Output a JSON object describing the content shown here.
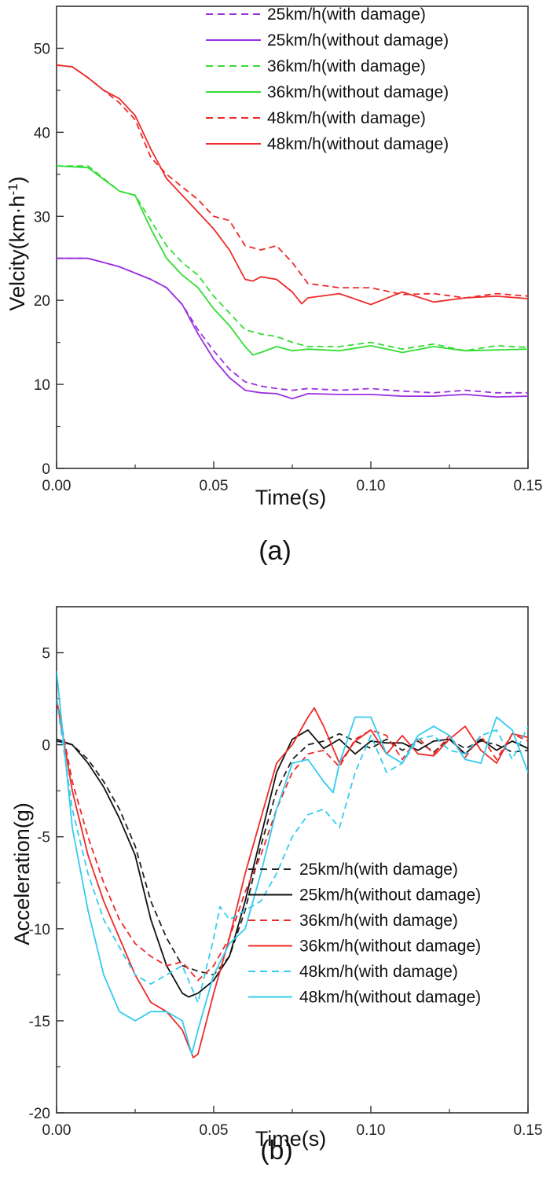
{
  "chart_data": [
    {
      "type": "line",
      "panel_label": "(a)",
      "xlabel": "Time(s)",
      "ylabel": "Velcity(km·h",
      "ylabel_sup": "-1",
      "ylabel_close": ")",
      "xlim": [
        0,
        0.15
      ],
      "ylim": [
        0,
        55
      ],
      "xticks": [
        "0.00",
        "0.05",
        "0.10",
        "0.15"
      ],
      "xtick_values": [
        0,
        0.05,
        0.1,
        0.15
      ],
      "yticks": [
        "0",
        "10",
        "20",
        "30",
        "40",
        "50"
      ],
      "ytick_values": [
        0,
        10,
        20,
        30,
        40,
        50
      ],
      "grid": false,
      "legend_position": "top-right",
      "series": [
        {
          "name": "25km/h(with damage)",
          "color": "#9b30e0",
          "dash": true,
          "x": [
            0,
            0.01,
            0.02,
            0.03,
            0.035,
            0.04,
            0.045,
            0.05,
            0.055,
            0.06,
            0.065,
            0.07,
            0.075,
            0.08,
            0.09,
            0.1,
            0.11,
            0.12,
            0.13,
            0.14,
            0.15
          ],
          "y": [
            25,
            25,
            24,
            22.5,
            21.5,
            19.5,
            16.5,
            14,
            11.8,
            10.3,
            9.8,
            9.5,
            9.3,
            9.5,
            9.3,
            9.5,
            9.2,
            9.0,
            9.3,
            9.0,
            9.0
          ]
        },
        {
          "name": "25km/h(without damage)",
          "color": "#9b30e0",
          "dash": false,
          "x": [
            0,
            0.01,
            0.02,
            0.03,
            0.035,
            0.04,
            0.045,
            0.05,
            0.055,
            0.06,
            0.065,
            0.07,
            0.075,
            0.08,
            0.09,
            0.1,
            0.11,
            0.12,
            0.13,
            0.14,
            0.15
          ],
          "y": [
            25,
            25,
            24,
            22.5,
            21.5,
            19.5,
            16,
            13,
            10.8,
            9.3,
            9.0,
            8.9,
            8.3,
            8.9,
            8.8,
            8.8,
            8.6,
            8.6,
            8.8,
            8.5,
            8.6
          ]
        },
        {
          "name": "36km/h(with damage)",
          "color": "#33dd33",
          "dash": true,
          "x": [
            0,
            0.01,
            0.02,
            0.025,
            0.03,
            0.035,
            0.04,
            0.045,
            0.05,
            0.055,
            0.06,
            0.065,
            0.07,
            0.075,
            0.08,
            0.09,
            0.1,
            0.11,
            0.12,
            0.13,
            0.14,
            0.15
          ],
          "y": [
            36,
            36,
            33,
            32.5,
            29.5,
            26.5,
            24.5,
            23,
            20.5,
            18.5,
            16.5,
            16,
            15.7,
            15,
            14.5,
            14.5,
            15,
            14.2,
            14.8,
            14.0,
            14.6,
            14.4
          ]
        },
        {
          "name": "36km/h(without damage)",
          "color": "#33dd33",
          "dash": false,
          "x": [
            0,
            0.01,
            0.02,
            0.025,
            0.03,
            0.035,
            0.04,
            0.045,
            0.05,
            0.055,
            0.06,
            0.0625,
            0.065,
            0.07,
            0.075,
            0.08,
            0.09,
            0.1,
            0.11,
            0.12,
            0.13,
            0.14,
            0.15
          ],
          "y": [
            36,
            35.8,
            33,
            32.5,
            28.5,
            25,
            23,
            21.5,
            19,
            17,
            14.5,
            13.5,
            13.8,
            14.5,
            14,
            14.2,
            14.0,
            14.6,
            13.8,
            14.5,
            14.0,
            14.1,
            14.2
          ]
        },
        {
          "name": "48km/h(with damage)",
          "color": "#ee2a2a",
          "dash": true,
          "x": [
            0,
            0.005,
            0.01,
            0.015,
            0.02,
            0.025,
            0.03,
            0.035,
            0.04,
            0.045,
            0.05,
            0.055,
            0.06,
            0.065,
            0.07,
            0.075,
            0.08,
            0.09,
            0.1,
            0.11,
            0.12,
            0.13,
            0.14,
            0.15
          ],
          "y": [
            48,
            47.8,
            46.5,
            45,
            43.5,
            41.5,
            37,
            35,
            33.5,
            32,
            30,
            29.5,
            26.5,
            26,
            26.5,
            24.5,
            22,
            21.5,
            21.5,
            20.7,
            20.8,
            20.3,
            20.8,
            20.5
          ]
        },
        {
          "name": "48km/h(without damage)",
          "color": "#ee2a2a",
          "dash": false,
          "x": [
            0,
            0.005,
            0.01,
            0.015,
            0.02,
            0.025,
            0.03,
            0.035,
            0.04,
            0.045,
            0.05,
            0.055,
            0.06,
            0.0625,
            0.065,
            0.07,
            0.075,
            0.078,
            0.08,
            0.09,
            0.1,
            0.11,
            0.12,
            0.13,
            0.14,
            0.15
          ],
          "y": [
            48,
            47.8,
            46.5,
            45,
            44,
            42,
            38,
            34.5,
            32.5,
            30.5,
            28.5,
            26,
            22.5,
            22.3,
            22.8,
            22.5,
            21,
            19.6,
            20.3,
            20.8,
            19.5,
            21.0,
            19.8,
            20.3,
            20.5,
            20.2
          ]
        }
      ]
    },
    {
      "type": "line",
      "panel_label": "(b)",
      "xlabel": "Time(s)",
      "ylabel": "Acceleration(g)",
      "xlim": [
        0,
        0.15
      ],
      "ylim": [
        -20,
        7.5
      ],
      "xticks": [
        "0.00",
        "0.05",
        "0.10",
        "0.15"
      ],
      "xtick_values": [
        0,
        0.05,
        0.1,
        0.15
      ],
      "yticks": [
        "-20",
        "-15",
        "-10",
        "-5",
        "0",
        "5"
      ],
      "ytick_values": [
        -20,
        -15,
        -10,
        -5,
        0,
        5
      ],
      "grid": false,
      "legend_position": "bottom-right",
      "series": [
        {
          "name": "25km/h(with damage)",
          "color": "#222222",
          "dash": true,
          "x": [
            0,
            0.005,
            0.01,
            0.015,
            0.02,
            0.025,
            0.03,
            0.035,
            0.04,
            0.045,
            0.05,
            0.055,
            0.06,
            0.065,
            0.07,
            0.075,
            0.08,
            0.085,
            0.09,
            0.095,
            0.1,
            0.105,
            0.11,
            0.115,
            0.12,
            0.125,
            0.13,
            0.135,
            0.14,
            0.145,
            0.15
          ],
          "y": [
            0.2,
            0,
            -0.8,
            -2.0,
            -3.5,
            -5.5,
            -8.5,
            -10.5,
            -12,
            -12.3,
            -12.5,
            -11.5,
            -9.0,
            -5.5,
            -2.5,
            -0.8,
            0,
            0.2,
            0.6,
            0.2,
            -0.2,
            0.3,
            -0.3,
            0.2,
            -0.4,
            0.3,
            -0.2,
            0.2,
            0,
            -0.4,
            -0.3
          ]
        },
        {
          "name": "25km/h(without damage)",
          "color": "#111111",
          "dash": false,
          "x": [
            0,
            0.005,
            0.01,
            0.015,
            0.02,
            0.025,
            0.03,
            0.035,
            0.04,
            0.042,
            0.045,
            0.05,
            0.055,
            0.06,
            0.065,
            0.07,
            0.075,
            0.08,
            0.085,
            0.09,
            0.095,
            0.1,
            0.105,
            0.11,
            0.115,
            0.12,
            0.125,
            0.13,
            0.135,
            0.14,
            0.145,
            0.15
          ],
          "y": [
            0.3,
            0,
            -1.0,
            -2.3,
            -4.0,
            -6.0,
            -9.5,
            -12,
            -13.5,
            -13.7,
            -13.5,
            -12.8,
            -11.5,
            -8.5,
            -5.0,
            -1.5,
            0.3,
            0.8,
            -0.2,
            0.3,
            -0.5,
            0.2,
            0.1,
            0.1,
            -0.3,
            0.2,
            0.3,
            -0.5,
            0.3,
            -0.3,
            0.2,
            -0.2
          ]
        },
        {
          "name": "36km/h(with damage)",
          "color": "#ee2a2a",
          "dash": true,
          "x": [
            0,
            0.005,
            0.01,
            0.015,
            0.02,
            0.025,
            0.03,
            0.035,
            0.04,
            0.045,
            0.05,
            0.055,
            0.06,
            0.065,
            0.07,
            0.075,
            0.08,
            0.085,
            0.09,
            0.095,
            0.1,
            0.105,
            0.11,
            0.115,
            0.12,
            0.125,
            0.13,
            0.135,
            0.14,
            0.145,
            0.15
          ],
          "y": [
            2.5,
            -2.0,
            -5.0,
            -7.5,
            -9.5,
            -10.8,
            -11.5,
            -12.0,
            -11.8,
            -12.8,
            -12.0,
            -10.5,
            -8.0,
            -6.0,
            -3.5,
            -1.5,
            -0.5,
            -0.3,
            -1.2,
            0.3,
            0.8,
            0.5,
            -0.8,
            0.4,
            -0.5,
            0.5,
            -0.7,
            0.5,
            -0.8,
            0.6,
            0.2
          ]
        },
        {
          "name": "36km/h(without damage)",
          "color": "#ee2a2a",
          "dash": false,
          "x": [
            0,
            0.005,
            0.01,
            0.015,
            0.02,
            0.025,
            0.03,
            0.035,
            0.04,
            0.0435,
            0.045,
            0.05,
            0.055,
            0.06,
            0.065,
            0.07,
            0.075,
            0.08,
            0.082,
            0.085,
            0.09,
            0.095,
            0.1,
            0.105,
            0.11,
            0.115,
            0.12,
            0.125,
            0.13,
            0.135,
            0.14,
            0.145,
            0.15
          ],
          "y": [
            2.5,
            -2.5,
            -6.0,
            -8.5,
            -10.5,
            -12.5,
            -14.0,
            -14.5,
            -15.5,
            -17.0,
            -16.8,
            -13.5,
            -10.5,
            -7.0,
            -4.0,
            -1.0,
            0,
            1.5,
            2.0,
            1.0,
            -1.0,
            0.2,
            0.8,
            -0.5,
            0.5,
            -0.5,
            -0.6,
            0.3,
            1.0,
            -0.3,
            -1.0,
            0.6,
            0.4
          ]
        },
        {
          "name": "48km/h(with damage)",
          "color": "#33ccee",
          "dash": true,
          "x": [
            0,
            0.005,
            0.01,
            0.015,
            0.02,
            0.025,
            0.03,
            0.035,
            0.04,
            0.045,
            0.05,
            0.052,
            0.055,
            0.06,
            0.065,
            0.07,
            0.075,
            0.08,
            0.085,
            0.09,
            0.095,
            0.1,
            0.105,
            0.11,
            0.115,
            0.12,
            0.125,
            0.13,
            0.135,
            0.14,
            0.145,
            0.15
          ],
          "y": [
            2.5,
            -3.5,
            -7.0,
            -9.5,
            -11.0,
            -12.5,
            -13.0,
            -12.5,
            -12.0,
            -14.0,
            -10.5,
            -8.8,
            -9.5,
            -9.0,
            -8.5,
            -7.0,
            -5.0,
            -3.8,
            -3.5,
            -4.5,
            -1.5,
            0.5,
            -1.5,
            -1.0,
            0.3,
            0.5,
            -0.3,
            -0.5,
            0.5,
            0.8,
            -0.8,
            1.0
          ]
        },
        {
          "name": "48km/h(without damage)",
          "color": "#33ccee",
          "dash": false,
          "x": [
            0,
            0.005,
            0.01,
            0.015,
            0.02,
            0.025,
            0.03,
            0.035,
            0.04,
            0.043,
            0.045,
            0.05,
            0.055,
            0.06,
            0.065,
            0.07,
            0.075,
            0.08,
            0.085,
            0.088,
            0.09,
            0.095,
            0.1,
            0.105,
            0.11,
            0.115,
            0.12,
            0.125,
            0.13,
            0.135,
            0.14,
            0.145,
            0.15
          ],
          "y": [
            4.0,
            -4.5,
            -9.0,
            -12.5,
            -14.5,
            -15.0,
            -14.5,
            -14.5,
            -15.0,
            -16.8,
            -15.5,
            -12.5,
            -10.8,
            -10.0,
            -7.0,
            -3.5,
            -1.0,
            -0.8,
            -2.0,
            -2.6,
            -1.0,
            1.5,
            1.5,
            -0.5,
            -1.0,
            0.5,
            1.0,
            0.5,
            -0.8,
            -1.0,
            1.5,
            0.8,
            -1.5
          ]
        }
      ]
    }
  ]
}
